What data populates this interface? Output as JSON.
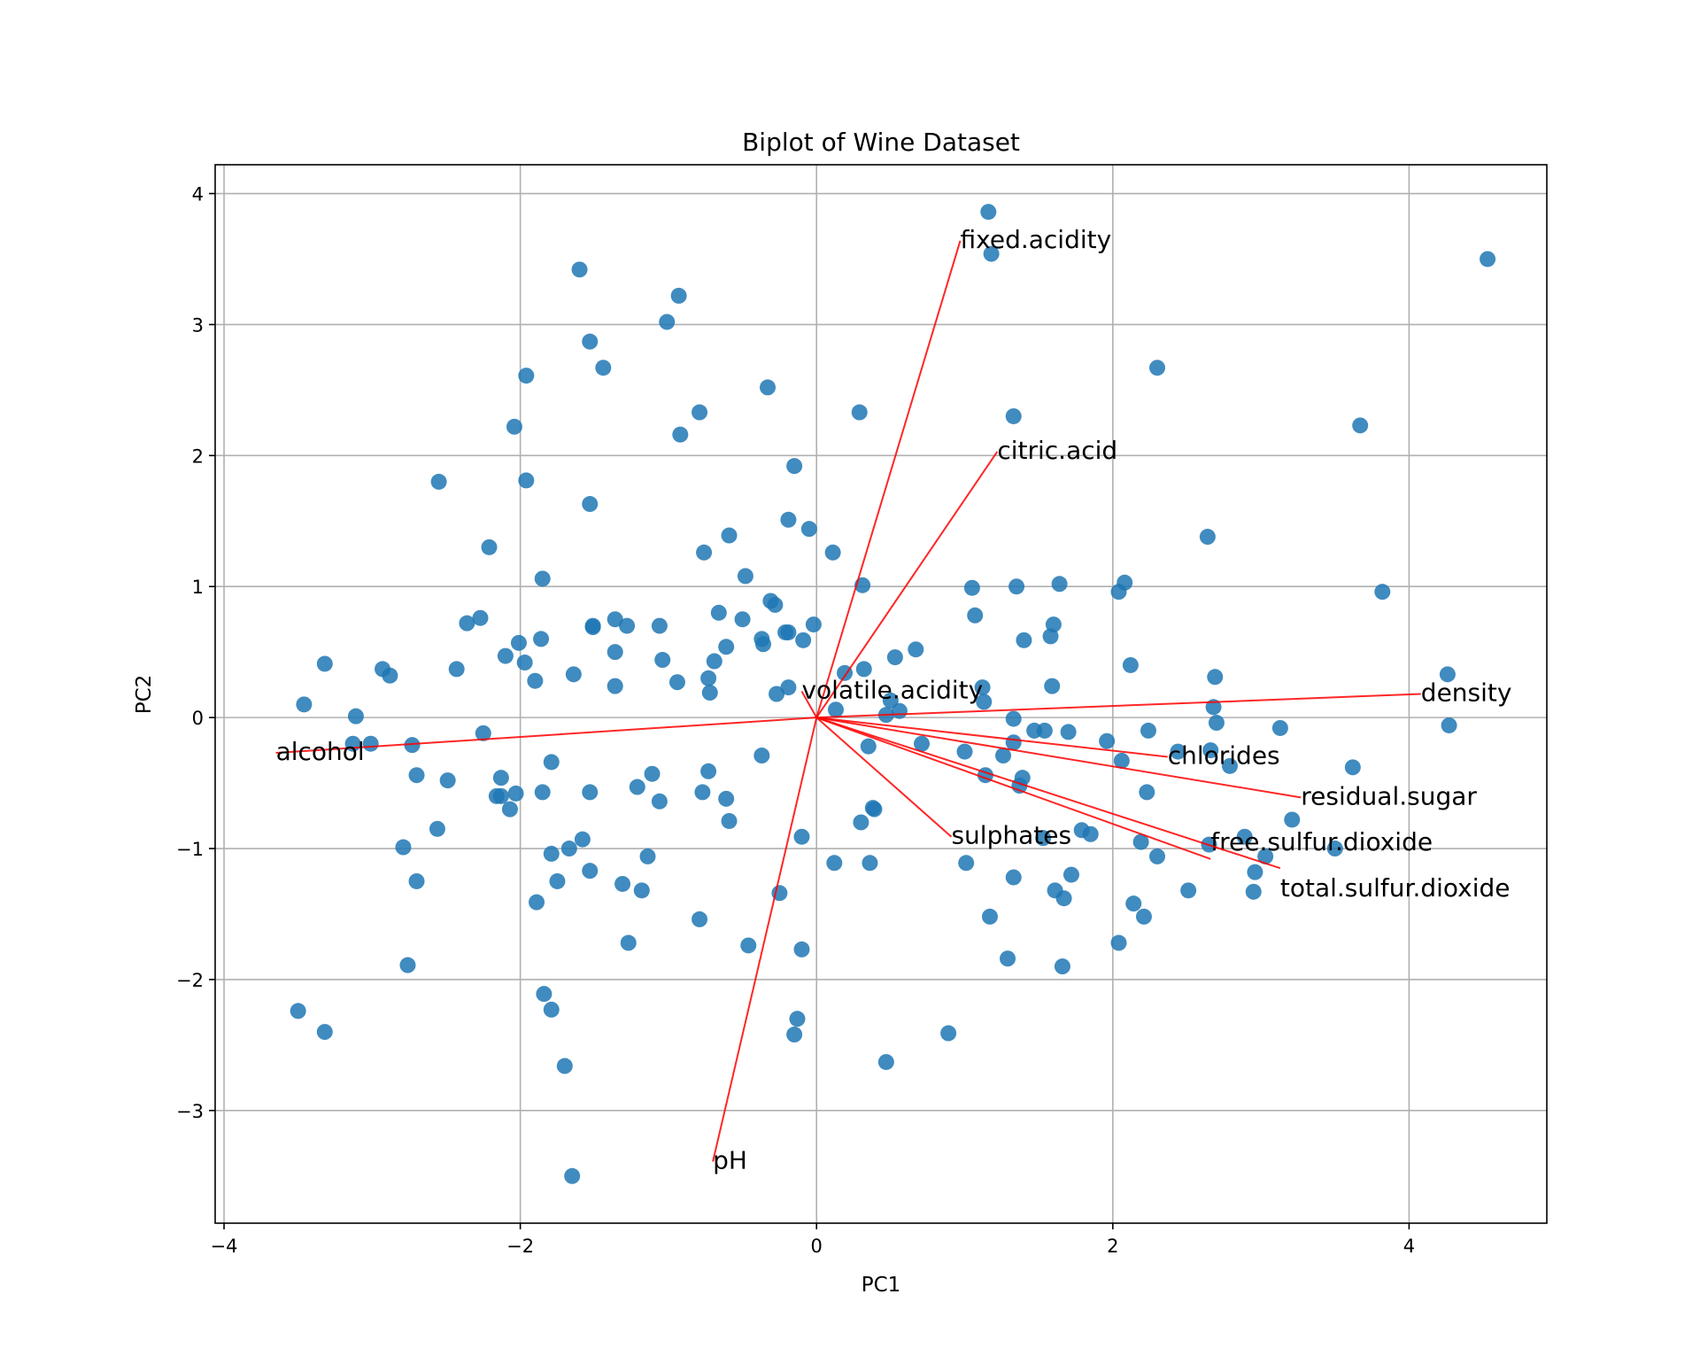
{
  "chart_data": {
    "type": "scatter",
    "title": "Biplot of Wine Dataset",
    "xlabel": "PC1",
    "ylabel": "PC2",
    "xlim": [
      -4.06,
      4.93
    ],
    "ylim": [
      -3.86,
      4.22
    ],
    "grid": true,
    "xticks": [
      -4,
      -2,
      0,
      2,
      4
    ],
    "xtick_labels": [
      "−4",
      "−2",
      "0",
      "2",
      "4"
    ],
    "yticks": [
      -3,
      -2,
      -1,
      0,
      1,
      2,
      3,
      4
    ],
    "ytick_labels": [
      "−3",
      "−2",
      "−1",
      "0",
      "1",
      "2",
      "3",
      "4"
    ],
    "point_color": "#1f77b4",
    "arrow_color": "#ff0000",
    "points": [
      [
        1.16,
        3.86
      ],
      [
        1.18,
        3.54
      ],
      [
        4.53,
        3.5
      ],
      [
        -1.6,
        3.42
      ],
      [
        -0.93,
        3.22
      ],
      [
        -1.01,
        3.02
      ],
      [
        -1.53,
        2.87
      ],
      [
        -1.44,
        2.67
      ],
      [
        2.3,
        2.67
      ],
      [
        -1.96,
        2.61
      ],
      [
        -0.33,
        2.52
      ],
      [
        0.29,
        2.33
      ],
      [
        -0.79,
        2.33
      ],
      [
        1.33,
        2.3
      ],
      [
        -2.04,
        2.22
      ],
      [
        3.67,
        2.23
      ],
      [
        -0.92,
        2.16
      ],
      [
        -0.15,
        1.92
      ],
      [
        -2.55,
        1.8
      ],
      [
        -1.96,
        1.81
      ],
      [
        -1.53,
        1.63
      ],
      [
        -0.19,
        1.51
      ],
      [
        -0.05,
        1.44
      ],
      [
        -0.59,
        1.39
      ],
      [
        2.64,
        1.38
      ],
      [
        -2.21,
        1.3
      ],
      [
        -0.76,
        1.26
      ],
      [
        0.11,
        1.26
      ],
      [
        -0.48,
        1.08
      ],
      [
        -1.85,
        1.06
      ],
      [
        0.31,
        1.01
      ],
      [
        1.05,
        0.99
      ],
      [
        1.35,
        1.0
      ],
      [
        1.64,
        1.02
      ],
      [
        2.08,
        1.03
      ],
      [
        2.04,
        0.96
      ],
      [
        3.82,
        0.96
      ],
      [
        -0.31,
        0.89
      ],
      [
        -0.28,
        0.86
      ],
      [
        1.07,
        0.78
      ],
      [
        -0.66,
        0.8
      ],
      [
        -2.27,
        0.76
      ],
      [
        -2.36,
        0.72
      ],
      [
        -1.36,
        0.75
      ],
      [
        -0.5,
        0.75
      ],
      [
        -1.51,
        0.7
      ],
      [
        -1.51,
        0.69
      ],
      [
        -1.28,
        0.7
      ],
      [
        -1.06,
        0.7
      ],
      [
        -0.21,
        0.65
      ],
      [
        -0.19,
        0.65
      ],
      [
        -0.02,
        0.71
      ],
      [
        1.6,
        0.71
      ],
      [
        -2.01,
        0.57
      ],
      [
        -1.86,
        0.6
      ],
      [
        -0.37,
        0.6
      ],
      [
        -0.36,
        0.56
      ],
      [
        -0.61,
        0.54
      ],
      [
        -0.09,
        0.59
      ],
      [
        1.4,
        0.59
      ],
      [
        1.58,
        0.62
      ],
      [
        0.67,
        0.52
      ],
      [
        0.53,
        0.46
      ],
      [
        -2.1,
        0.47
      ],
      [
        -1.36,
        0.5
      ],
      [
        -1.04,
        0.44
      ],
      [
        -1.97,
        0.42
      ],
      [
        -3.32,
        0.41
      ],
      [
        2.12,
        0.4
      ],
      [
        -2.93,
        0.37
      ],
      [
        -2.43,
        0.37
      ],
      [
        -2.88,
        0.32
      ],
      [
        -1.64,
        0.33
      ],
      [
        0.19,
        0.34
      ],
      [
        0.32,
        0.37
      ],
      [
        -0.69,
        0.43
      ],
      [
        -0.73,
        0.3
      ],
      [
        -1.9,
        0.28
      ],
      [
        -0.94,
        0.27
      ],
      [
        2.69,
        0.31
      ],
      [
        4.26,
        0.33
      ],
      [
        -1.36,
        0.24
      ],
      [
        -0.19,
        0.23
      ],
      [
        1.59,
        0.24
      ],
      [
        -0.72,
        0.19
      ],
      [
        -0.27,
        0.18
      ],
      [
        1.12,
        0.23
      ],
      [
        1.13,
        0.12
      ],
      [
        0.5,
        0.13
      ],
      [
        -3.46,
        0.1
      ],
      [
        2.68,
        0.08
      ],
      [
        0.13,
        0.06
      ],
      [
        0.56,
        0.05
      ],
      [
        0.47,
        0.02
      ],
      [
        -3.11,
        0.01
      ],
      [
        1.33,
        -0.01
      ],
      [
        4.27,
        -0.06
      ],
      [
        2.7,
        -0.04
      ],
      [
        3.13,
        -0.08
      ],
      [
        1.7,
        -0.11
      ],
      [
        1.47,
        -0.1
      ],
      [
        1.54,
        -0.1
      ],
      [
        -2.25,
        -0.12
      ],
      [
        2.24,
        -0.1
      ],
      [
        1.96,
        -0.18
      ],
      [
        0.71,
        -0.2
      ],
      [
        1.33,
        -0.19
      ],
      [
        -2.73,
        -0.21
      ],
      [
        -3.13,
        -0.2
      ],
      [
        -3.01,
        -0.2
      ],
      [
        0.35,
        -0.22
      ],
      [
        1.0,
        -0.26
      ],
      [
        2.66,
        -0.25
      ],
      [
        2.44,
        -0.26
      ],
      [
        1.26,
        -0.29
      ],
      [
        -0.37,
        -0.29
      ],
      [
        -1.79,
        -0.34
      ],
      [
        2.06,
        -0.33
      ],
      [
        2.79,
        -0.37
      ],
      [
        3.62,
        -0.38
      ],
      [
        -0.73,
        -0.41
      ],
      [
        -1.11,
        -0.43
      ],
      [
        1.39,
        -0.46
      ],
      [
        -2.13,
        -0.46
      ],
      [
        -2.7,
        -0.44
      ],
      [
        -2.49,
        -0.48
      ],
      [
        1.14,
        -0.44
      ],
      [
        1.37,
        -0.52
      ],
      [
        -1.21,
        -0.53
      ],
      [
        -2.16,
        -0.6
      ],
      [
        -2.13,
        -0.6
      ],
      [
        -2.03,
        -0.58
      ],
      [
        -1.85,
        -0.57
      ],
      [
        -1.53,
        -0.57
      ],
      [
        -0.77,
        -0.57
      ],
      [
        2.23,
        -0.57
      ],
      [
        -0.61,
        -0.62
      ],
      [
        -1.06,
        -0.64
      ],
      [
        -2.07,
        -0.7
      ],
      [
        0.38,
        -0.69
      ],
      [
        0.39,
        -0.7
      ],
      [
        -0.59,
        -0.79
      ],
      [
        3.21,
        -0.78
      ],
      [
        0.3,
        -0.8
      ],
      [
        -2.56,
        -0.85
      ],
      [
        1.79,
        -0.86
      ],
      [
        1.85,
        -0.89
      ],
      [
        -0.1,
        -0.91
      ],
      [
        1.53,
        -0.92
      ],
      [
        -1.58,
        -0.93
      ],
      [
        2.89,
        -0.91
      ],
      [
        2.19,
        -0.95
      ],
      [
        -2.79,
        -0.99
      ],
      [
        -1.67,
        -1.0
      ],
      [
        3.5,
        -1.0
      ],
      [
        2.65,
        -0.97
      ],
      [
        -1.79,
        -1.04
      ],
      [
        2.3,
        -1.06
      ],
      [
        -1.14,
        -1.06
      ],
      [
        3.03,
        -1.06
      ],
      [
        0.12,
        -1.11
      ],
      [
        0.36,
        -1.11
      ],
      [
        1.01,
        -1.11
      ],
      [
        -1.53,
        -1.17
      ],
      [
        2.96,
        -1.18
      ],
      [
        1.72,
        -1.2
      ],
      [
        1.33,
        -1.22
      ],
      [
        -2.7,
        -1.25
      ],
      [
        -1.75,
        -1.25
      ],
      [
        -1.31,
        -1.27
      ],
      [
        -1.18,
        -1.32
      ],
      [
        2.51,
        -1.32
      ],
      [
        1.61,
        -1.32
      ],
      [
        2.95,
        -1.33
      ],
      [
        -0.25,
        -1.34
      ],
      [
        1.67,
        -1.38
      ],
      [
        -1.89,
        -1.41
      ],
      [
        2.14,
        -1.42
      ],
      [
        1.17,
        -1.52
      ],
      [
        2.21,
        -1.52
      ],
      [
        -0.79,
        -1.54
      ],
      [
        -1.27,
        -1.72
      ],
      [
        2.04,
        -1.72
      ],
      [
        -0.46,
        -1.74
      ],
      [
        -0.1,
        -1.77
      ],
      [
        1.29,
        -1.84
      ],
      [
        1.66,
        -1.9
      ],
      [
        -2.76,
        -1.89
      ],
      [
        -1.84,
        -2.11
      ],
      [
        -1.79,
        -2.23
      ],
      [
        -3.5,
        -2.24
      ],
      [
        -0.13,
        -2.3
      ],
      [
        -3.32,
        -2.4
      ],
      [
        -0.15,
        -2.42
      ],
      [
        0.89,
        -2.41
      ],
      [
        -1.7,
        -2.66
      ],
      [
        0.47,
        -2.63
      ],
      [
        -1.65,
        -3.5
      ]
    ],
    "loadings": [
      {
        "name": "fixed.acidity",
        "x": 0.97,
        "y": 3.64
      },
      {
        "name": "citric.acid",
        "x": 1.22,
        "y": 2.03
      },
      {
        "name": "volatile.acidity",
        "x": -0.1,
        "y": 0.2
      },
      {
        "name": "density",
        "x": 4.08,
        "y": 0.18
      },
      {
        "name": "alcohol",
        "x": -3.65,
        "y": -0.27
      },
      {
        "name": "chlorides",
        "x": 2.37,
        "y": -0.3
      },
      {
        "name": "residual.sugar",
        "x": 3.27,
        "y": -0.61
      },
      {
        "name": "sulphates",
        "x": 0.91,
        "y": -0.91
      },
      {
        "name": "free.sulfur.dioxide",
        "x": 2.66,
        "y": -1.08
      },
      {
        "name": "total.sulfur.dioxide",
        "x": 3.13,
        "y": -1.15
      },
      {
        "name": "pH",
        "x": -0.7,
        "y": -3.39
      }
    ]
  }
}
